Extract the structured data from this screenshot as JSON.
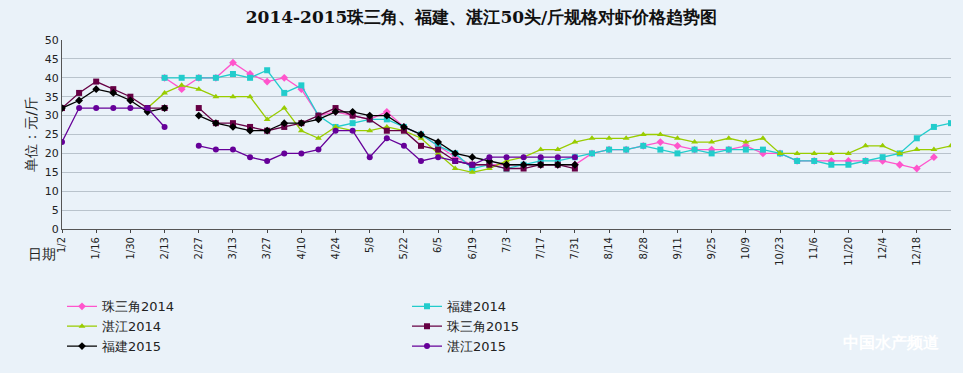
{
  "chart_data": {
    "type": "line",
    "title": "2014-2015珠三角、福建、湛江50头/斤规格对虾价格趋势图",
    "x_label": "日期",
    "y_label": "单位：元/斤",
    "watermark": "中国水产频道",
    "categories": [
      "1/2",
      null,
      "1/16",
      null,
      "1/30",
      null,
      "2/13",
      null,
      "2/27",
      null,
      "3/13",
      null,
      "3/27",
      null,
      "4/10",
      null,
      "4/24",
      null,
      "5/8",
      null,
      "5/22",
      null,
      "6/5",
      null,
      "6/19",
      null,
      "7/3",
      null,
      "7/17",
      null,
      "7/31",
      null,
      "8/14",
      null,
      "8/28",
      null,
      "9/11",
      null,
      "9/25",
      null,
      "10/9",
      null,
      "10/23",
      null,
      "11/6",
      null,
      "11/20",
      null,
      "12/4",
      null,
      "12/18",
      null,
      null
    ],
    "series": [
      {
        "name": "珠三角2014",
        "color": "#ff55cc",
        "marker": "diamond",
        "line_style": "solid",
        "values": [
          null,
          null,
          null,
          null,
          null,
          null,
          40,
          37,
          40,
          40,
          44,
          41,
          39,
          40,
          37,
          30,
          31,
          30,
          29,
          31,
          27,
          25,
          22,
          19,
          17,
          17,
          17,
          17,
          17,
          17,
          17,
          20,
          21,
          21,
          22,
          23,
          22,
          21,
          21,
          21,
          22,
          20,
          20,
          18,
          18,
          18,
          18,
          18,
          18,
          17,
          16,
          19,
          null
        ]
      },
      {
        "name": "福建2014",
        "color": "#22cccc",
        "marker": "square",
        "line_style": "solid",
        "values": [
          null,
          null,
          null,
          null,
          null,
          null,
          40,
          40,
          40,
          40,
          41,
          40,
          42,
          36,
          38,
          30,
          27,
          28,
          29,
          29,
          27,
          25,
          22,
          20,
          16,
          17,
          16,
          17,
          18,
          18,
          19,
          20,
          21,
          21,
          22,
          21,
          20,
          21,
          20,
          21,
          21,
          21,
          20,
          18,
          18,
          17,
          17,
          18,
          19,
          20,
          24,
          27,
          28
        ]
      },
      {
        "name": "湛江2014",
        "color": "#99cc00",
        "marker": "triangle-up",
        "line_style": "solid",
        "values": [
          null,
          null,
          null,
          null,
          null,
          32,
          36,
          38,
          37,
          35,
          35,
          35,
          29,
          32,
          26,
          24,
          27,
          26,
          26,
          27,
          26,
          24,
          20,
          16,
          15,
          16,
          18,
          19,
          21,
          21,
          23,
          24,
          24,
          24,
          25,
          25,
          24,
          23,
          23,
          24,
          23,
          24,
          20,
          20,
          20,
          20,
          20,
          22,
          22,
          20,
          21,
          21,
          22
        ]
      },
      {
        "name": "珠三角2015",
        "color": "#660044",
        "marker": "square",
        "line_style": "solid",
        "values": [
          32,
          36,
          39,
          37,
          35,
          32,
          32,
          null,
          32,
          28,
          28,
          27,
          26,
          27,
          28,
          30,
          32,
          30,
          29,
          26,
          26,
          22,
          21,
          18,
          17,
          17,
          16,
          16,
          17,
          17,
          16,
          null,
          null,
          null,
          null,
          null,
          null,
          null,
          null,
          null,
          null,
          null,
          null,
          null,
          null,
          null,
          null,
          null,
          null,
          null,
          null,
          null,
          null
        ]
      },
      {
        "name": "福建2015",
        "color": "#000000",
        "marker": "diamond",
        "line_style": "solid",
        "values": [
          32,
          34,
          37,
          36,
          34,
          31,
          32,
          null,
          30,
          28,
          27,
          26,
          26,
          28,
          28,
          29,
          31,
          31,
          30,
          30,
          27,
          25,
          23,
          20,
          19,
          18,
          17,
          17,
          17,
          17,
          17,
          null,
          null,
          null,
          null,
          null,
          null,
          null,
          null,
          null,
          null,
          null,
          null,
          null,
          null,
          null,
          null,
          null,
          null,
          null,
          null,
          null,
          null
        ]
      },
      {
        "name": "湛江2015",
        "color": "#660099",
        "marker": "circle",
        "line_style": "solid",
        "values": [
          23,
          32,
          32,
          32,
          32,
          32,
          27,
          null,
          22,
          21,
          21,
          19,
          18,
          20,
          20,
          21,
          26,
          26,
          19,
          24,
          22,
          18,
          19,
          18,
          17,
          19,
          19,
          19,
          19,
          19,
          19,
          null,
          null,
          null,
          null,
          null,
          null,
          null,
          null,
          null,
          null,
          null,
          null,
          null,
          null,
          null,
          null,
          null,
          null,
          null,
          null,
          null,
          null
        ]
      }
    ],
    "ylim": [
      0,
      50
    ],
    "yticks": [
      0,
      5,
      10,
      15,
      20,
      25,
      30,
      35,
      40,
      45,
      50
    ],
    "grid": true,
    "legend": "bottom"
  }
}
